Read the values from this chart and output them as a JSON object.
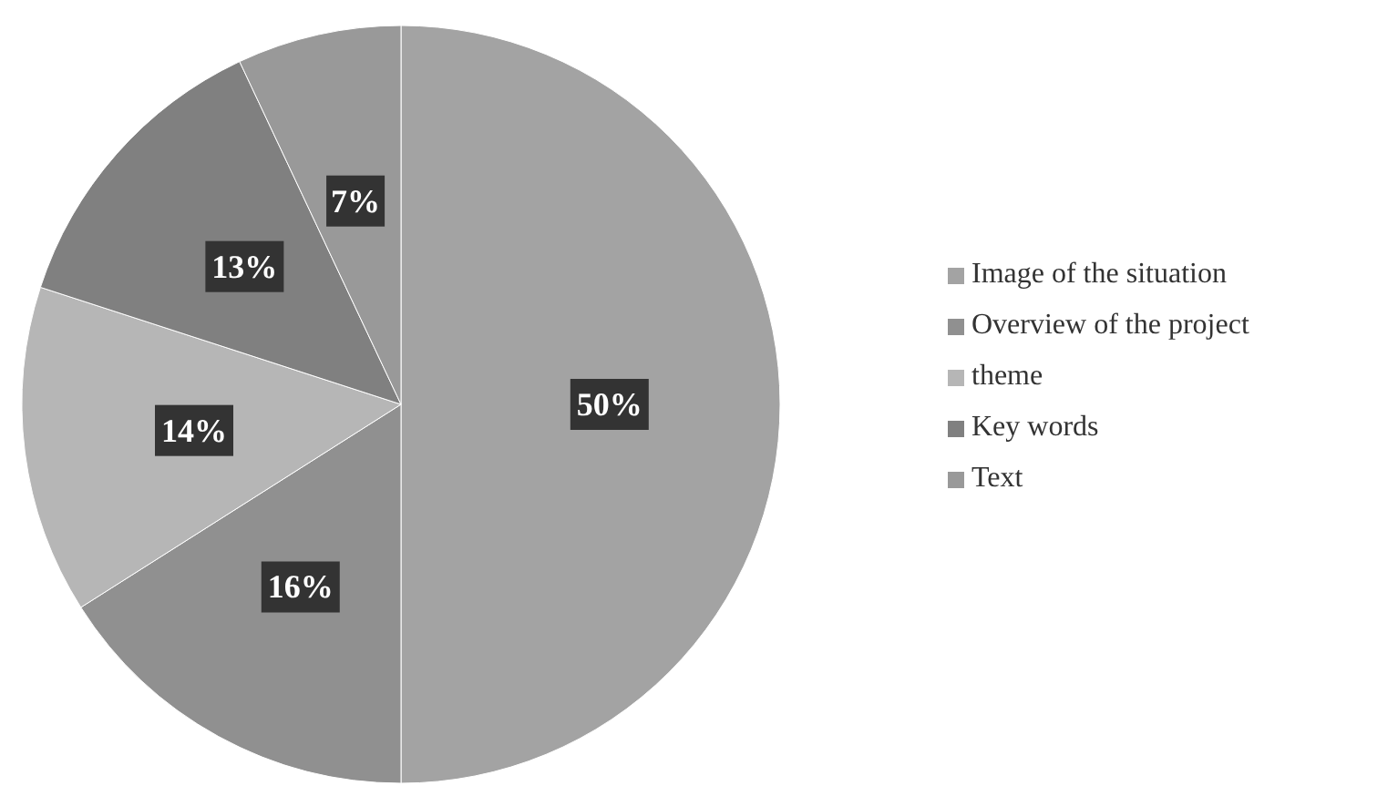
{
  "chart_data": {
    "type": "pie",
    "categories": [
      "Image of the situation",
      "Overview of the project",
      "theme",
      "Key words",
      "Text"
    ],
    "values": [
      50,
      16,
      14,
      13,
      7
    ],
    "value_labels": [
      "50%",
      "16%",
      "14%",
      "13%",
      "7%"
    ],
    "colors": [
      "#a3a3a3",
      "#909090",
      "#b6b6b6",
      "#808080",
      "#999999"
    ],
    "legend": "right"
  }
}
